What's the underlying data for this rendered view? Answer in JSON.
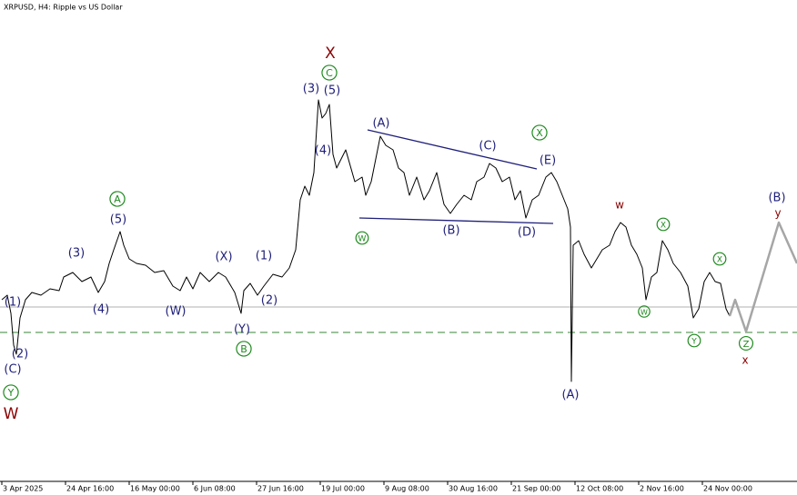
{
  "chart_data": {
    "type": "line",
    "title": "XRPUSD, H4:  Ripple vs US Dollar",
    "xlim": [
      0,
      876
    ],
    "ylim": [
      0,
      530
    ],
    "xticks": [
      {
        "value": 2,
        "label": "3 Apr 2025"
      },
      {
        "value": 72,
        "label": "24 Apr 16:00"
      },
      {
        "value": 142,
        "label": "16 May 00:00"
      },
      {
        "value": 212,
        "label": "6 Jun 08:00"
      },
      {
        "value": 282,
        "label": "27 Jun 16:00"
      },
      {
        "value": 352,
        "label": "19 Jul 00:00"
      },
      {
        "value": 422,
        "label": "9 Aug 08:00"
      },
      {
        "value": 492,
        "label": "30 Aug 16:00"
      },
      {
        "value": 562,
        "label": "21 Sep 00:00"
      },
      {
        "value": 632,
        "label": "12 Oct 08:00"
      },
      {
        "value": 702,
        "label": "2 Nov 16:00"
      },
      {
        "value": 772,
        "label": "24 Nov 00:00"
      }
    ],
    "series": [
      {
        "color": "#000000",
        "x": [
          2,
          8,
          12,
          15,
          18,
          22,
          28,
          35,
          45,
          55,
          65,
          70,
          80,
          90,
          100,
          108,
          115,
          120,
          125,
          132,
          136,
          142,
          150,
          160,
          170,
          180,
          190,
          198,
          205,
          212,
          220,
          230,
          240,
          248,
          258,
          265,
          268,
          275,
          283,
          290,
          300,
          310,
          318,
          325,
          330,
          335,
          340,
          345,
          350,
          354,
          358,
          362,
          366,
          370,
          380,
          390,
          398,
          402,
          408,
          414,
          418,
          424,
          432,
          438,
          444,
          450,
          458,
          466,
          472,
          480,
          488,
          495,
          502,
          510,
          518,
          524,
          532,
          538,
          545,
          552,
          560,
          566,
          572,
          578,
          585,
          592,
          600,
          606,
          612,
          618,
          624,
          627,
          628,
          630,
          636,
          642,
          650,
          656,
          662,
          670,
          676,
          682,
          688,
          694,
          700,
          706,
          710,
          716,
          722,
          728,
          734,
          740,
          748,
          756,
          762,
          768,
          774,
          780,
          786,
          792,
          798,
          802
        ],
        "values": [
          200,
          205,
          185,
          150,
          140,
          180,
          200,
          208,
          205,
          212,
          210,
          225,
          230,
          220,
          225,
          208,
          220,
          240,
          255,
          275,
          260,
          245,
          240,
          238,
          230,
          232,
          215,
          210,
          225,
          212,
          230,
          220,
          230,
          225,
          208,
          185,
          210,
          218,
          205,
          215,
          228,
          225,
          235,
          255,
          310,
          325,
          315,
          340,
          420,
          400,
          405,
          415,
          360,
          345,
          365,
          330,
          335,
          315,
          330,
          360,
          380,
          370,
          365,
          345,
          340,
          315,
          335,
          310,
          320,
          340,
          305,
          295,
          305,
          315,
          310,
          330,
          335,
          350,
          345,
          330,
          335,
          310,
          320,
          290,
          310,
          315,
          335,
          340,
          330,
          315,
          300,
          280,
          110,
          260,
          265,
          250,
          235,
          245,
          255,
          260,
          275,
          285,
          280,
          260,
          250,
          235,
          200,
          225,
          230,
          265,
          255,
          240,
          230,
          215,
          180,
          190,
          220,
          230,
          220,
          218,
          190,
          182
        ]
      },
      {
        "color": "#a6a6a6",
        "x": [
          802,
          808,
          820,
          856,
          876
        ],
        "values": [
          182,
          200,
          165,
          285,
          240
        ]
      }
    ],
    "hlines": [
      {
        "value": 192,
        "color": "#c0c0c0"
      },
      {
        "value": 164,
        "color": "#5f9e5f",
        "dashed": true
      }
    ],
    "trendlines": [
      {
        "x": [
          404,
          590
        ],
        "values": [
          387,
          344
        ]
      },
      {
        "x": [
          395,
          608
        ],
        "values": [
          290,
          284
        ]
      }
    ],
    "annotations": [
      "X",
      "C",
      "(3)",
      "(5)",
      "(4)",
      "(A)",
      "(C)",
      "X",
      "(E)",
      "W",
      "(B)",
      "(D)",
      "A",
      "(5)",
      "(3)",
      "(4)",
      "(W)",
      "(X)",
      "(1)",
      "(2)",
      "(Y)",
      "B",
      "(1)",
      "(2)",
      "(C)",
      "Y",
      "W",
      "w",
      "X",
      "W",
      "Y",
      "X",
      "Z",
      "x",
      "(B)",
      "y",
      "(A)"
    ]
  }
}
